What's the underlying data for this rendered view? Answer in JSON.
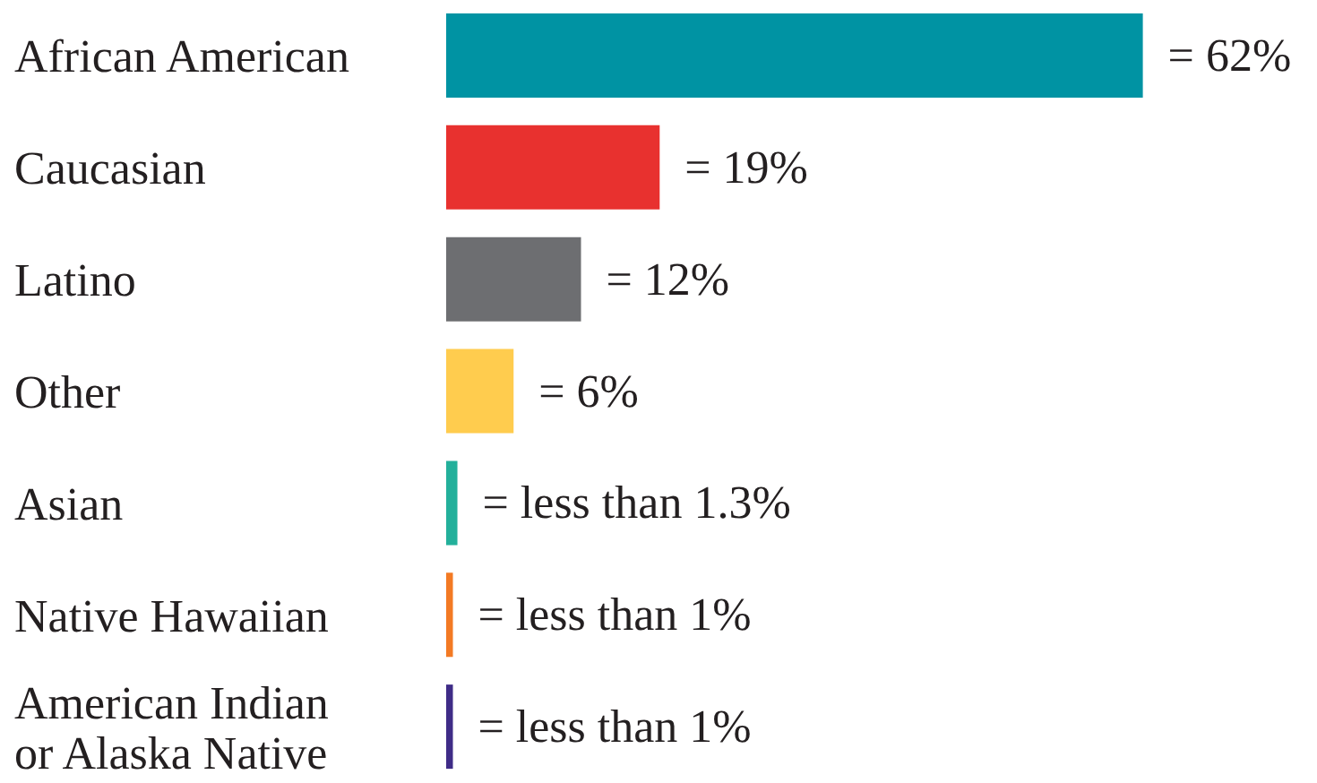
{
  "chart_data": {
    "type": "bar",
    "orientation": "horizontal",
    "categories": [
      "African American",
      "Caucasian",
      "Latino",
      "Other",
      "Asian",
      "Native Hawaiian",
      "American Indian or Alaska Native"
    ],
    "values": [
      62,
      19,
      12,
      6,
      1,
      0.6,
      0.6
    ],
    "colors": [
      "#0093a3",
      "#e8312f",
      "#6d6e71",
      "#ffcc4e",
      "#23b09b",
      "#f37a24",
      "#3f2c87"
    ],
    "value_labels": [
      "= 62%",
      "= 19%",
      "= 12%",
      "= 6%",
      "= less than 1.3%",
      "= less than 1%",
      "= less than 1%"
    ],
    "grid": false,
    "legend": false
  }
}
